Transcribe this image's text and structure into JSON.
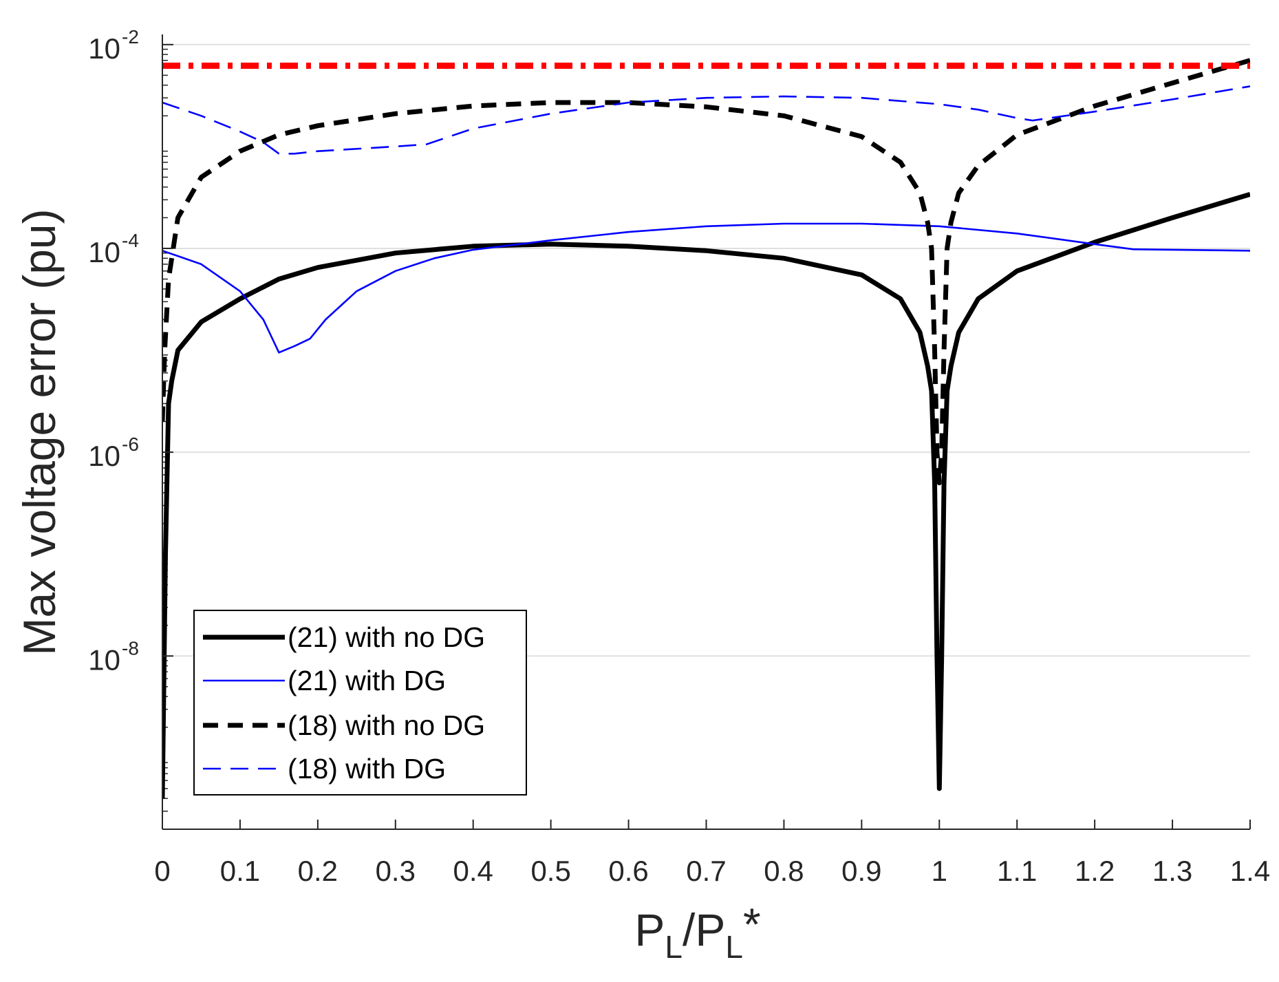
{
  "chart_data": {
    "type": "line",
    "y_scale": "log",
    "xlabel": {
      "main": "P",
      "sub": "L",
      "slash": "/",
      "main2": "P",
      "sub2": "L",
      "star": "*"
    },
    "ylabel": "Max voltage error (pu)",
    "xlim": [
      0,
      1.4
    ],
    "ylim_log10": [
      -9.7,
      -1.9
    ],
    "x_ticks": [
      0,
      0.1,
      0.2,
      0.3,
      0.4,
      0.5,
      0.6,
      0.7,
      0.8,
      0.9,
      1,
      1.1,
      1.2,
      1.3,
      1.4
    ],
    "x_tick_labels": [
      "0",
      "0.1",
      "0.2",
      "0.3",
      "0.4",
      "0.5",
      "0.6",
      "0.7",
      "0.8",
      "0.9",
      "1",
      "1.1",
      "1.2",
      "1.3",
      "1.4"
    ],
    "y_ticks": [
      {
        "exp": -8,
        "base": "10",
        "power": "-8"
      },
      {
        "exp": -6,
        "base": "10",
        "power": "-6"
      },
      {
        "exp": -4,
        "base": "10",
        "power": "-4"
      },
      {
        "exp": -2,
        "base": "10",
        "power": "-2"
      }
    ],
    "grid": "horizontal",
    "legend_position": "bottom-left",
    "threshold": {
      "y": 0.0062,
      "color": "#ff0000",
      "style": "dash-dot"
    },
    "series": [
      {
        "name": "(21) with no DG",
        "color": "#000000",
        "style": "solid",
        "weight": "thick",
        "points": [
          [
            0,
            4e-10
          ],
          [
            0.004,
            1e-07
          ],
          [
            0.008,
            3e-06
          ],
          [
            0.012,
            5e-06
          ],
          [
            0.02,
            1e-05
          ],
          [
            0.05,
            1.9e-05
          ],
          [
            0.1,
            3.2e-05
          ],
          [
            0.15,
            5e-05
          ],
          [
            0.2,
            6.5e-05
          ],
          [
            0.3,
            9e-05
          ],
          [
            0.4,
            0.000105
          ],
          [
            0.5,
            0.00011
          ],
          [
            0.6,
            0.000105
          ],
          [
            0.7,
            9.5e-05
          ],
          [
            0.8,
            8e-05
          ],
          [
            0.9,
            5.5e-05
          ],
          [
            0.95,
            3.2e-05
          ],
          [
            0.975,
            1.5e-05
          ],
          [
            0.985,
            7e-06
          ],
          [
            0.99,
            4e-06
          ],
          [
            0.994,
            5e-07
          ],
          [
            0.997,
            1e-08
          ],
          [
            1.0,
            5e-10
          ],
          [
            1.003,
            1e-08
          ],
          [
            1.006,
            5e-07
          ],
          [
            1.01,
            4e-06
          ],
          [
            1.015,
            7e-06
          ],
          [
            1.025,
            1.5e-05
          ],
          [
            1.05,
            3.2e-05
          ],
          [
            1.1,
            6e-05
          ],
          [
            1.2,
            0.000115
          ],
          [
            1.3,
            0.0002
          ],
          [
            1.4,
            0.00034
          ]
        ]
      },
      {
        "name": "(21) with DG",
        "color": "#0000ff",
        "style": "solid",
        "weight": "thin",
        "points": [
          [
            0,
            9.5e-05
          ],
          [
            0.05,
            7e-05
          ],
          [
            0.1,
            3.8e-05
          ],
          [
            0.13,
            2e-05
          ],
          [
            0.15,
            9.5e-06
          ],
          [
            0.17,
            1.1e-05
          ],
          [
            0.19,
            1.3e-05
          ],
          [
            0.21,
            2e-05
          ],
          [
            0.25,
            3.8e-05
          ],
          [
            0.3,
            6e-05
          ],
          [
            0.35,
            8e-05
          ],
          [
            0.4,
            9.7e-05
          ],
          [
            0.5,
            0.00012
          ],
          [
            0.6,
            0.000145
          ],
          [
            0.7,
            0.000165
          ],
          [
            0.8,
            0.000175
          ],
          [
            0.9,
            0.000175
          ],
          [
            1.0,
            0.000165
          ],
          [
            1.1,
            0.00014
          ],
          [
            1.2,
            0.00011
          ],
          [
            1.25,
            9.8e-05
          ],
          [
            1.3,
            9.7e-05
          ],
          [
            1.4,
            9.5e-05
          ]
        ]
      },
      {
        "name": "(18) with no DG",
        "color": "#000000",
        "style": "dashed",
        "weight": "thick",
        "points": [
          [
            0,
            2e-06
          ],
          [
            0.003,
            1e-05
          ],
          [
            0.008,
            5e-05
          ],
          [
            0.02,
            0.0002
          ],
          [
            0.05,
            0.0005
          ],
          [
            0.1,
            0.0009
          ],
          [
            0.15,
            0.0013
          ],
          [
            0.2,
            0.0016
          ],
          [
            0.3,
            0.0021
          ],
          [
            0.4,
            0.0025
          ],
          [
            0.5,
            0.0027
          ],
          [
            0.6,
            0.0027
          ],
          [
            0.7,
            0.00245
          ],
          [
            0.8,
            0.002
          ],
          [
            0.9,
            0.00125
          ],
          [
            0.95,
            0.0007
          ],
          [
            0.975,
            0.00035
          ],
          [
            0.985,
            0.00018
          ],
          [
            0.99,
            0.0001
          ],
          [
            0.994,
            1e-05
          ],
          [
            0.997,
            1e-06
          ],
          [
            1.0,
            5e-07
          ],
          [
            1.003,
            1e-06
          ],
          [
            1.006,
            1e-05
          ],
          [
            1.01,
            0.0001
          ],
          [
            1.015,
            0.00018
          ],
          [
            1.025,
            0.00035
          ],
          [
            1.05,
            0.00065
          ],
          [
            1.1,
            0.0013
          ],
          [
            1.2,
            0.0025
          ],
          [
            1.3,
            0.0042
          ],
          [
            1.4,
            0.007
          ]
        ]
      },
      {
        "name": "(18) with DG",
        "color": "#0000ff",
        "style": "dashed",
        "weight": "thin",
        "points": [
          [
            0,
            0.0027
          ],
          [
            0.05,
            0.002
          ],
          [
            0.1,
            0.0014
          ],
          [
            0.13,
            0.0011
          ],
          [
            0.15,
            0.00085
          ],
          [
            0.17,
            0.00085
          ],
          [
            0.2,
            0.0009
          ],
          [
            0.3,
            0.001
          ],
          [
            0.34,
            0.00105
          ],
          [
            0.4,
            0.0015
          ],
          [
            0.5,
            0.0021
          ],
          [
            0.6,
            0.0027
          ],
          [
            0.7,
            0.003
          ],
          [
            0.8,
            0.0031
          ],
          [
            0.9,
            0.003
          ],
          [
            1.0,
            0.0026
          ],
          [
            1.05,
            0.0023
          ],
          [
            1.1,
            0.0019
          ],
          [
            1.12,
            0.0018
          ],
          [
            1.2,
            0.0022
          ],
          [
            1.3,
            0.0029
          ],
          [
            1.4,
            0.0039
          ]
        ]
      }
    ]
  }
}
